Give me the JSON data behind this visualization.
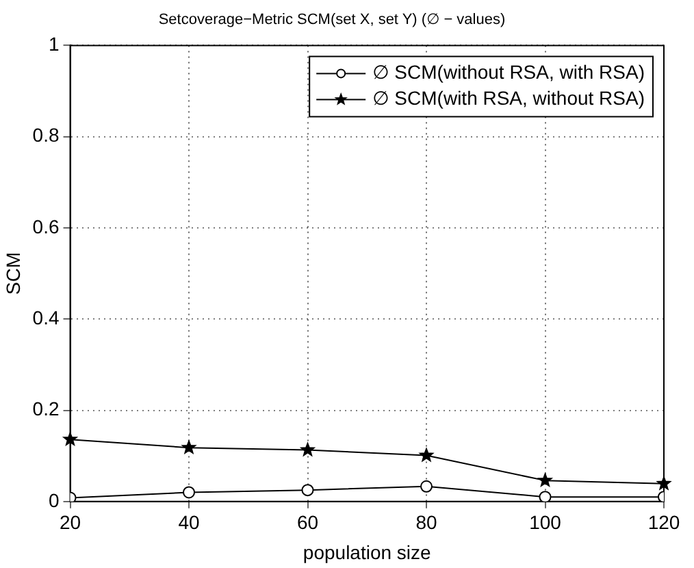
{
  "chart_data": {
    "type": "line",
    "title": "Setcoverage−Metric SCM(set X, set Y) (∅ − values)",
    "xlabel": "population size",
    "ylabel": "SCM",
    "x": [
      20,
      40,
      60,
      80,
      100,
      120
    ],
    "series": [
      {
        "name": "∅ SCM(without RSA, with RSA)",
        "color": "#000000",
        "marker": "circle",
        "values": [
          0.008,
          0.02,
          0.025,
          0.033,
          0.01,
          0.01
        ]
      },
      {
        "name": "∅ SCM(with RSA, without RSA)",
        "color": "#000000",
        "marker": "star",
        "values": [
          0.136,
          0.118,
          0.113,
          0.101,
          0.046,
          0.039
        ]
      }
    ],
    "xlim": [
      20,
      120
    ],
    "xticks": [
      20,
      40,
      60,
      80,
      100,
      120
    ],
    "ylim": [
      0,
      1
    ],
    "yticks": [
      0,
      0.2,
      0.4,
      0.6,
      0.8,
      1
    ],
    "grid": true,
    "legend": "top right",
    "line_style": "solid"
  }
}
